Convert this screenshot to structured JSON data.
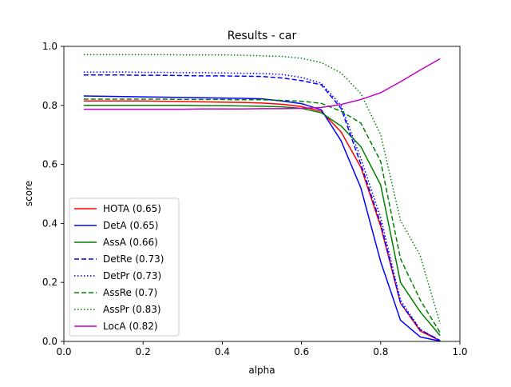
{
  "chart_data": {
    "type": "line",
    "title": "Results - car",
    "xlabel": "alpha",
    "ylabel": "score",
    "xlim": [
      0.0,
      1.0
    ],
    "ylim": [
      0.0,
      1.0
    ],
    "xticks": [
      "0.0",
      "0.2",
      "0.4",
      "0.6",
      "0.8",
      "1.0"
    ],
    "yticks": [
      "0.0",
      "0.2",
      "0.4",
      "0.6",
      "0.8",
      "1.0"
    ],
    "grid": false,
    "legend_position": "lower-left",
    "x": [
      0.05,
      0.1,
      0.15,
      0.2,
      0.25,
      0.3,
      0.35,
      0.4,
      0.45,
      0.5,
      0.55,
      0.6,
      0.65,
      0.7,
      0.75,
      0.8,
      0.85,
      0.9,
      0.95
    ],
    "series": [
      {
        "name": "HOTA (0.65)",
        "color": "#ff0000",
        "dash": "solid",
        "values": [
          0.815,
          0.815,
          0.815,
          0.815,
          0.814,
          0.813,
          0.812,
          0.811,
          0.81,
          0.808,
          0.804,
          0.796,
          0.78,
          0.71,
          0.59,
          0.39,
          0.13,
          0.035,
          0.002
        ]
      },
      {
        "name": "DetA (0.65)",
        "color": "#0000ff",
        "dash": "solid",
        "values": [
          0.832,
          0.831,
          0.83,
          0.829,
          0.828,
          0.827,
          0.826,
          0.825,
          0.824,
          0.822,
          0.815,
          0.806,
          0.785,
          0.68,
          0.52,
          0.27,
          0.072,
          0.015,
          0.001
        ]
      },
      {
        "name": "AssA (0.66)",
        "color": "#008000",
        "dash": "solid",
        "values": [
          0.8,
          0.8,
          0.8,
          0.8,
          0.8,
          0.8,
          0.799,
          0.799,
          0.798,
          0.797,
          0.795,
          0.79,
          0.775,
          0.73,
          0.66,
          0.53,
          0.2,
          0.1,
          0.02
        ]
      },
      {
        "name": "DetRe (0.73)",
        "color": "#0000ff",
        "dash": "dashed",
        "values": [
          0.903,
          0.903,
          0.903,
          0.902,
          0.902,
          0.901,
          0.9,
          0.9,
          0.899,
          0.898,
          0.893,
          0.884,
          0.87,
          0.79,
          0.6,
          0.4,
          0.13,
          0.04,
          0.003
        ]
      },
      {
        "name": "DetPr (0.73)",
        "color": "#0000ff",
        "dash": "dotted",
        "values": [
          0.913,
          0.913,
          0.913,
          0.912,
          0.912,
          0.911,
          0.911,
          0.91,
          0.909,
          0.908,
          0.905,
          0.895,
          0.875,
          0.8,
          0.62,
          0.42,
          0.14,
          0.04,
          0.003
        ]
      },
      {
        "name": "AssRe (0.7)",
        "color": "#008000",
        "dash": "dashed",
        "values": [
          0.821,
          0.821,
          0.821,
          0.821,
          0.821,
          0.82,
          0.82,
          0.82,
          0.819,
          0.819,
          0.817,
          0.814,
          0.807,
          0.78,
          0.74,
          0.61,
          0.28,
          0.14,
          0.03
        ]
      },
      {
        "name": "AssPr (0.83)",
        "color": "#008000",
        "dash": "dotted",
        "values": [
          0.972,
          0.972,
          0.972,
          0.972,
          0.972,
          0.971,
          0.971,
          0.971,
          0.97,
          0.968,
          0.966,
          0.96,
          0.945,
          0.91,
          0.84,
          0.7,
          0.41,
          0.29,
          0.06
        ]
      },
      {
        "name": "LocA (0.82)",
        "color": "#bf00bf",
        "dash": "solid",
        "values": [
          0.787,
          0.787,
          0.787,
          0.787,
          0.787,
          0.787,
          0.788,
          0.788,
          0.788,
          0.789,
          0.789,
          0.79,
          0.793,
          0.803,
          0.82,
          0.843,
          0.88,
          0.92,
          0.958
        ]
      }
    ]
  }
}
